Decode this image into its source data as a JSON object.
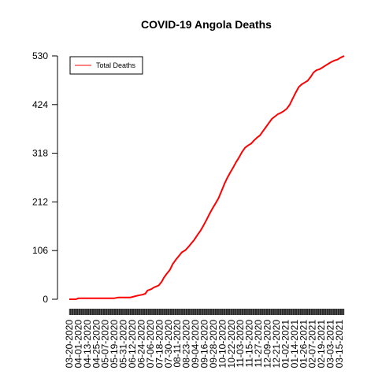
{
  "chart_data": {
    "type": "line",
    "title": "COVID-19 Angola Deaths",
    "xlabel": "",
    "ylabel": "",
    "ylim": [
      0,
      530
    ],
    "yticks": [
      0,
      106,
      212,
      318,
      424,
      530
    ],
    "xlim": [
      "2020-03-20",
      "2021-03-24"
    ],
    "xtick_labels": [
      "03-20-2020",
      "04-01-2020",
      "04-13-2020",
      "04-25-2020",
      "05-07-2020",
      "05-19-2020",
      "05-31-2020",
      "06-12-2020",
      "06-24-2020",
      "07-06-2020",
      "07-18-2020",
      "07-30-2020",
      "08-11-2020",
      "08-23-2020",
      "09-04-2020",
      "09-16-2020",
      "09-28-2020",
      "10-10-2020",
      "10-22-2020",
      "11-03-2020",
      "11-15-2020",
      "11-27-2020",
      "12-09-2020",
      "12-21-2020",
      "01-02-2021",
      "01-14-2021",
      "01-26-2021",
      "02-07-2021",
      "02-19-2021",
      "03-03-2021",
      "03-15-2021"
    ],
    "legend": {
      "position": "top-left",
      "entries": [
        "Total Deaths"
      ]
    },
    "grid": false,
    "colors": {
      "line": "#ff0000",
      "axis": "#000000",
      "background": "#ffffff"
    },
    "series": [
      {
        "name": "Total Deaths",
        "points": [
          [
            "2020-03-20",
            0
          ],
          [
            "2020-03-29",
            0
          ],
          [
            "2020-04-01",
            2
          ],
          [
            "2020-04-20",
            2
          ],
          [
            "2020-05-10",
            2
          ],
          [
            "2020-05-19",
            2
          ],
          [
            "2020-05-25",
            4
          ],
          [
            "2020-06-10",
            4
          ],
          [
            "2020-06-15",
            6
          ],
          [
            "2020-06-20",
            8
          ],
          [
            "2020-06-26",
            10
          ],
          [
            "2020-06-30",
            12
          ],
          [
            "2020-07-03",
            19
          ],
          [
            "2020-07-08",
            22
          ],
          [
            "2020-07-12",
            26
          ],
          [
            "2020-07-18",
            30
          ],
          [
            "2020-07-22",
            38
          ],
          [
            "2020-07-25",
            47
          ],
          [
            "2020-07-29",
            56
          ],
          [
            "2020-08-02",
            64
          ],
          [
            "2020-08-06",
            77
          ],
          [
            "2020-08-10",
            86
          ],
          [
            "2020-08-14",
            94
          ],
          [
            "2020-08-18",
            102
          ],
          [
            "2020-08-23",
            107
          ],
          [
            "2020-08-27",
            114
          ],
          [
            "2020-08-31",
            122
          ],
          [
            "2020-09-04",
            130
          ],
          [
            "2020-09-08",
            140
          ],
          [
            "2020-09-12",
            149
          ],
          [
            "2020-09-16",
            160
          ],
          [
            "2020-09-20",
            172
          ],
          [
            "2020-09-24",
            185
          ],
          [
            "2020-09-28",
            197
          ],
          [
            "2020-10-02",
            208
          ],
          [
            "2020-10-06",
            219
          ],
          [
            "2020-10-10",
            234
          ],
          [
            "2020-10-14",
            250
          ],
          [
            "2020-10-18",
            264
          ],
          [
            "2020-10-22",
            276
          ],
          [
            "2020-10-26",
            287
          ],
          [
            "2020-10-30",
            299
          ],
          [
            "2020-11-03",
            309
          ],
          [
            "2020-11-07",
            321
          ],
          [
            "2020-11-11",
            330
          ],
          [
            "2020-11-15",
            335
          ],
          [
            "2020-11-19",
            339
          ],
          [
            "2020-11-23",
            346
          ],
          [
            "2020-11-27",
            352
          ],
          [
            "2020-12-01",
            357
          ],
          [
            "2020-12-05",
            366
          ],
          [
            "2020-12-09",
            375
          ],
          [
            "2020-12-13",
            384
          ],
          [
            "2020-12-17",
            393
          ],
          [
            "2020-12-21",
            398
          ],
          [
            "2020-12-25",
            403
          ],
          [
            "2020-12-29",
            406
          ],
          [
            "2021-01-02",
            410
          ],
          [
            "2021-01-06",
            415
          ],
          [
            "2021-01-10",
            424
          ],
          [
            "2021-01-14",
            437
          ],
          [
            "2021-01-18",
            450
          ],
          [
            "2021-01-22",
            462
          ],
          [
            "2021-01-26",
            468
          ],
          [
            "2021-01-30",
            472
          ],
          [
            "2021-02-03",
            476
          ],
          [
            "2021-02-07",
            484
          ],
          [
            "2021-02-11",
            494
          ],
          [
            "2021-02-15",
            499
          ],
          [
            "2021-02-19",
            501
          ],
          [
            "2021-02-23",
            505
          ],
          [
            "2021-02-27",
            509
          ],
          [
            "2021-03-03",
            513
          ],
          [
            "2021-03-07",
            517
          ],
          [
            "2021-03-11",
            520
          ],
          [
            "2021-03-15",
            522
          ],
          [
            "2021-03-19",
            526
          ],
          [
            "2021-03-24",
            530
          ]
        ]
      }
    ]
  }
}
